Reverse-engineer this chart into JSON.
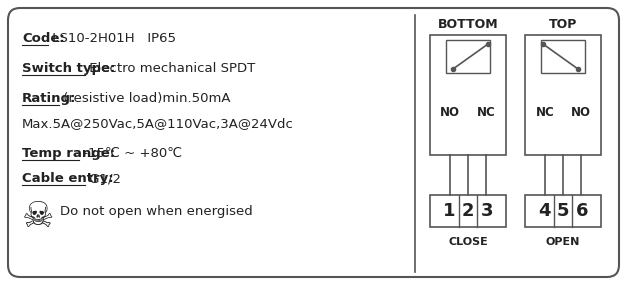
{
  "bg_color": "#f0f0f0",
  "border_color": "#555555",
  "text_color": "#222222",
  "title_lines": [
    {
      "label": "Code:",
      "value": " LS10-2H01H   IP65",
      "underline_label": true
    },
    {
      "label": "Switch type:",
      "value": " Electro mechanical SPDT",
      "underline_label": true
    },
    {
      "label": "Rating:",
      "value": " (resistive load)min.50mA",
      "underline_label": true
    },
    {
      "label": "",
      "value": "Max.5A@250Vac,5A@110Vac,3A@24Vdc",
      "underline_label": false
    },
    {
      "label": "Temp range:",
      "value": " -15℃ ~ +80℃",
      "underline_label": true
    },
    {
      "label": "Cable entry:",
      "value": " G1/2",
      "underline_label": true
    }
  ],
  "warning_text": "Do not open when energised",
  "bottom_label": "BOTTOM",
  "top_label": "TOP",
  "close_label": "CLOSE",
  "open_label": "OPEN",
  "bottom_terminals": [
    "1",
    "2",
    "3"
  ],
  "top_terminals": [
    "4",
    "5",
    "6"
  ],
  "bottom_port_labels": [
    "NO",
    "NC"
  ],
  "top_port_labels": [
    "NC",
    "NO"
  ]
}
